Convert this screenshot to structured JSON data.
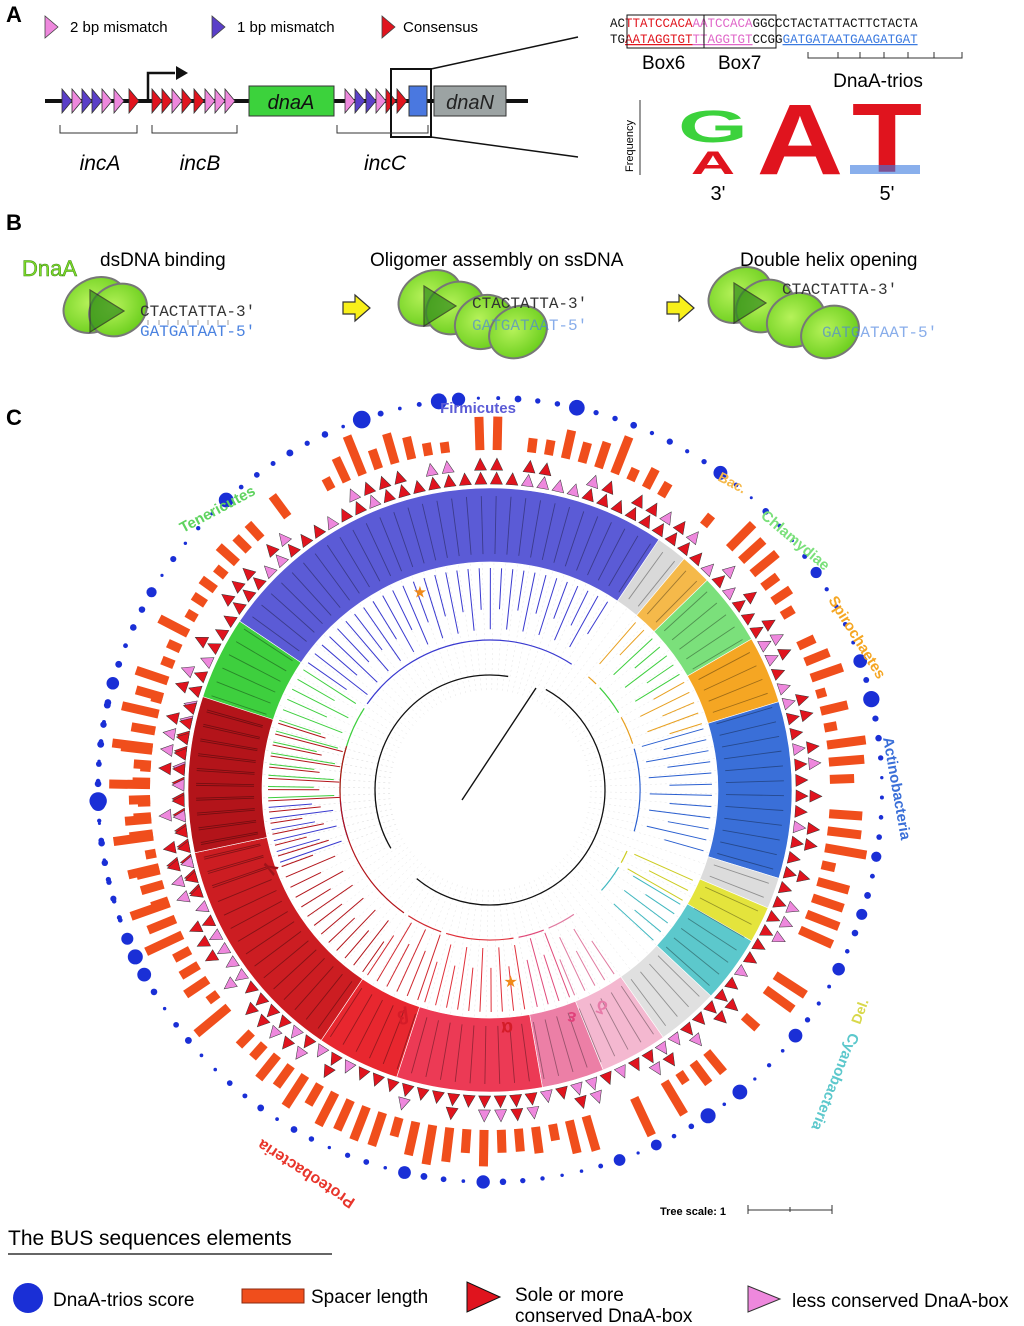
{
  "panels": {
    "a": "A",
    "b": "B",
    "c": "C"
  },
  "panel_a": {
    "legend": {
      "two_bp": "2 bp mismatch",
      "one_bp": "1 bp mismatch",
      "consensus": "Consensus"
    },
    "genes": {
      "dnaA": "dnaA",
      "dnaN": "dnaN"
    },
    "regions": {
      "incA": "incA",
      "incB": "incB",
      "incC": "incC"
    },
    "seq": {
      "top_prefix": "AC",
      "top_box6": "TTATCCACA",
      "top_box7": "AATCCACA",
      "top_rest": "GGCCCTACTATTACTTCTACTA",
      "bot_prefix": "TG",
      "bot_box6": "AATAGGTGT",
      "bot_box7": "TTAGGTGT",
      "bot_mid": "CCGG",
      "bot_trios": "GATGATAATGAAGATGAT",
      "box6": "Box6",
      "box7": "Box7",
      "trios": "DnaA-trios"
    },
    "logo": {
      "ylabel": "Frequency",
      "letters": [
        "G",
        "A",
        "A",
        "T"
      ],
      "end3": "3'",
      "end5": "5'"
    }
  },
  "panel_b": {
    "dnaa_label": "DnaA",
    "steps": [
      {
        "title": "dsDNA binding",
        "top": "CTACTATTA-3'",
        "bottom": "GATGATAAT-5'"
      },
      {
        "title": "Oligomer assembly on ssDNA",
        "top": "CTACTATTA-3'",
        "bottom": "GATGATAAT-5'"
      },
      {
        "title": "Double helix opening",
        "top": "CTACTATTA-3'",
        "bottom": "GATGATAAT-5'"
      }
    ]
  },
  "panel_c": {
    "phyla": [
      {
        "name": "Firmicutes",
        "color": "#5b5bd6"
      },
      {
        "name": "Tenericutes",
        "color": "#5fd35f"
      },
      {
        "name": "Bac.",
        "color": "#f5b94a"
      },
      {
        "name": "Chlamydiae",
        "color": "#7be07b"
      },
      {
        "name": "Spirochaetes",
        "color": "#f5a623"
      },
      {
        "name": "Actinobacteria",
        "color": "#3a6fd8"
      },
      {
        "name": "Del.",
        "color": "#d8d84a"
      },
      {
        "name": "Cyanobacteria",
        "color": "#5cc8cc"
      },
      {
        "name": "Proteobacteria",
        "color": "#e8352b"
      }
    ],
    "greek": {
      "gamma": "γ",
      "beta": "β",
      "alpha": "α",
      "epsilon": "ε",
      "delta": "δ"
    },
    "tree_scale": "Tree scale: 1"
  },
  "legend": {
    "title": "The BUS sequences elements",
    "trios": "DnaA-trios score",
    "spacer": "Spacer length",
    "sole_line1": "Sole or more",
    "sole_line2": "conserved DnaA-box",
    "less": "less conserved DnaA-box"
  },
  "colors": {
    "blue_dot": "#1a2fd6",
    "spacer": "#f04e1c",
    "red_tri": "#e0141e",
    "pink_tri": "#ee88dd"
  }
}
